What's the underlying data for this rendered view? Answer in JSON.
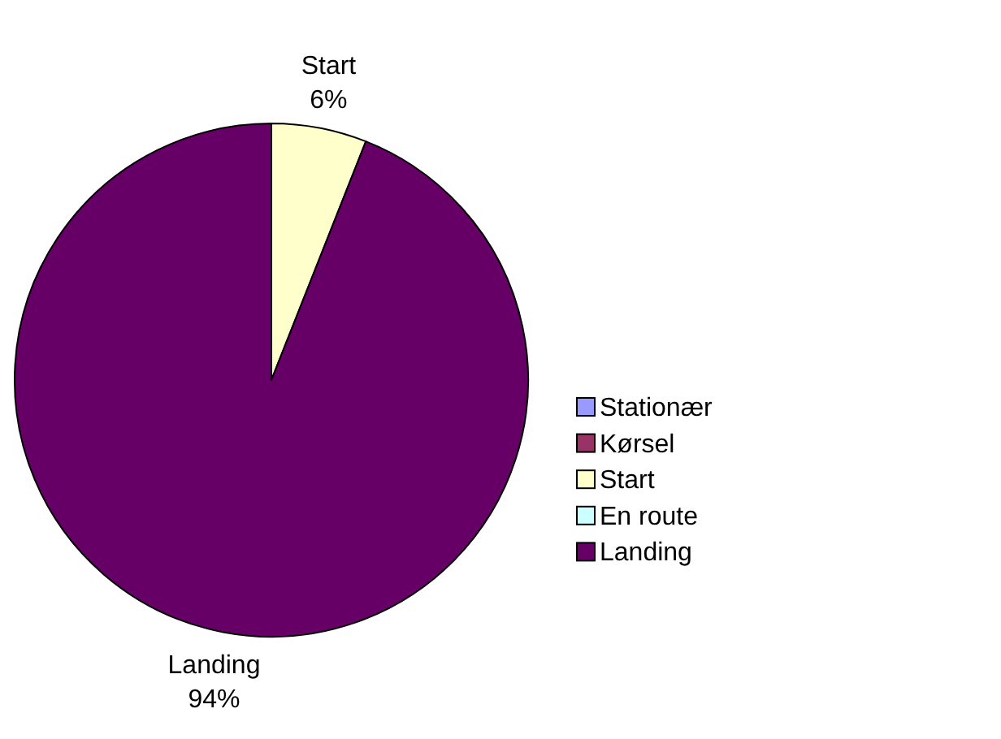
{
  "chart_data": {
    "type": "pie",
    "categories": [
      "Stationær",
      "Kørsel",
      "Start",
      "En route",
      "Landing"
    ],
    "values": [
      0,
      0,
      6,
      0,
      94
    ],
    "value_labels": [
      null,
      null,
      "6%",
      null,
      "94%"
    ],
    "colors": [
      "#9999ff",
      "#993366",
      "#ffffcc",
      "#ccffff",
      "#660066"
    ],
    "legend": "right"
  }
}
